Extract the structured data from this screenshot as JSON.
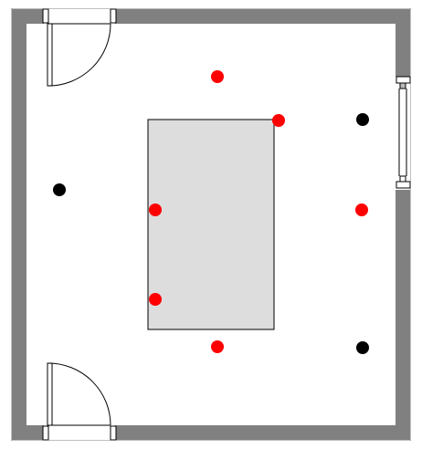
{
  "colors": {
    "wall": "#808080",
    "floor": "#ffffff",
    "table_fill": "#dddddd",
    "outline": "#000000",
    "red_marker": "#ff0000",
    "black_marker": "#000000"
  },
  "elements": {
    "doors": [
      {
        "name": "door-top-left",
        "swing": "down-right"
      },
      {
        "name": "door-bottom-left",
        "swing": "up-right"
      }
    ],
    "window": {
      "name": "window-right-wall"
    },
    "table": {
      "name": "center-table"
    },
    "markers": [
      {
        "name": "red-marker-top",
        "color": "red"
      },
      {
        "name": "red-marker-table-corner",
        "color": "red"
      },
      {
        "name": "red-marker-table-left-upper",
        "color": "red"
      },
      {
        "name": "red-marker-table-left-lower",
        "color": "red"
      },
      {
        "name": "red-marker-bottom",
        "color": "red"
      },
      {
        "name": "red-marker-right",
        "color": "red"
      },
      {
        "name": "black-marker-left",
        "color": "black"
      },
      {
        "name": "black-marker-top-right",
        "color": "black"
      },
      {
        "name": "black-marker-bottom-right",
        "color": "black"
      }
    ]
  }
}
